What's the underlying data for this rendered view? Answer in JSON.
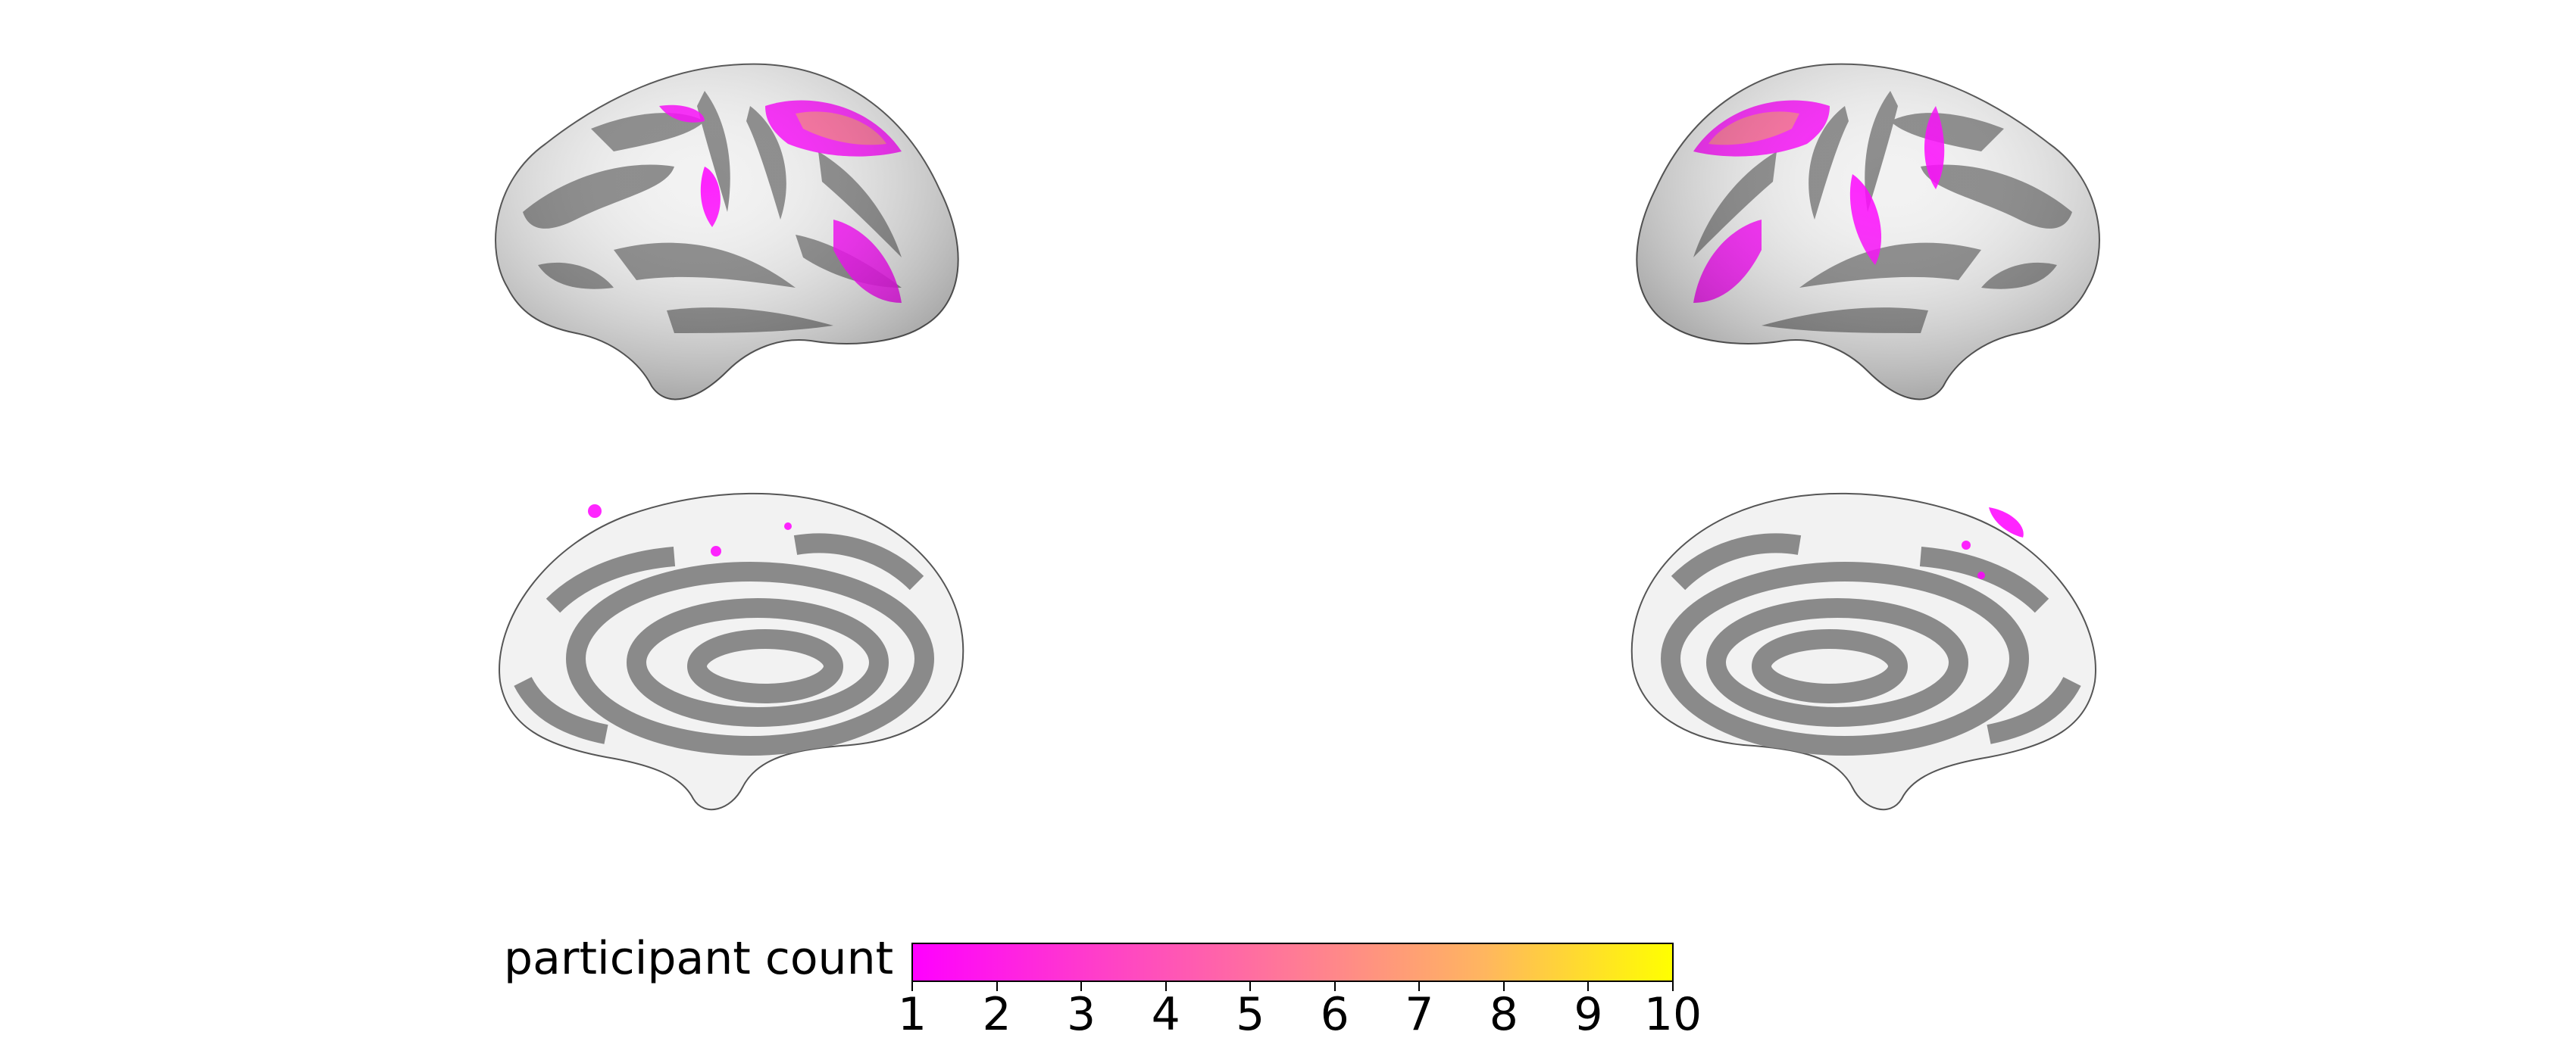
{
  "figure": {
    "views": [
      {
        "id": "lh-lateral",
        "hemisphere": "left",
        "surface": "lateral"
      },
      {
        "id": "rh-lateral",
        "hemisphere": "right",
        "surface": "lateral"
      },
      {
        "id": "lh-medial",
        "hemisphere": "left",
        "surface": "medial"
      },
      {
        "id": "rh-medial",
        "hemisphere": "right",
        "surface": "medial"
      }
    ],
    "colors": {
      "gyri": "#f2f2f2",
      "sulci": "#8a8a8a",
      "overlay_low": "#ff00ff",
      "overlay_high": "#ffff00"
    }
  },
  "colorbar": {
    "label": "participant count",
    "min": 1,
    "max": 10,
    "ticks": [
      "1",
      "2",
      "3",
      "4",
      "5",
      "6",
      "7",
      "8",
      "9",
      "10"
    ],
    "colormap": [
      "#ff00ff",
      "#ff40c8",
      "#ff7a96",
      "#ffb560",
      "#ffff00"
    ]
  }
}
